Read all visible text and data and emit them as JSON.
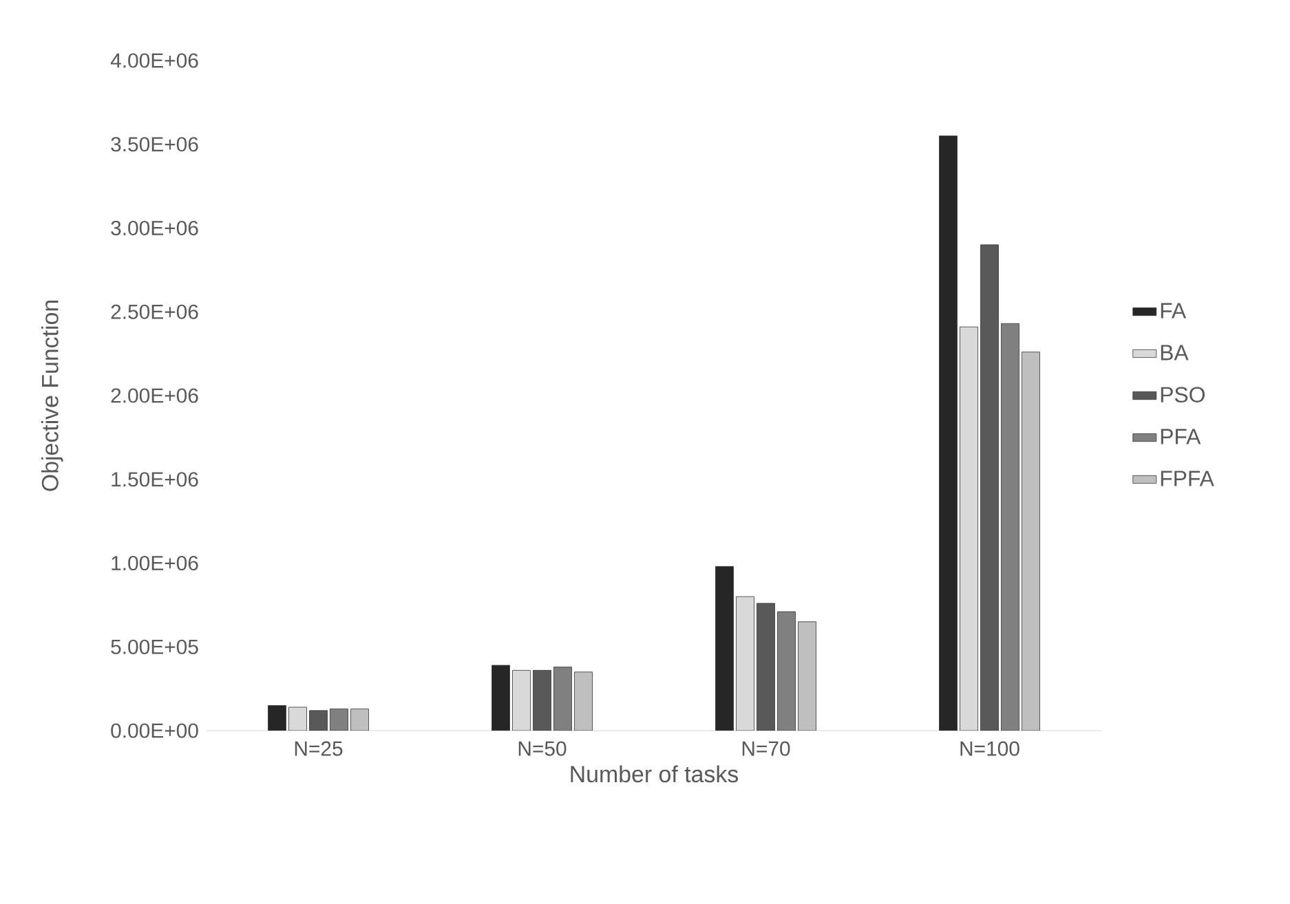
{
  "chart_data": {
    "type": "bar",
    "xlabel": "Number of tasks",
    "ylabel": "Objective Function",
    "categories": [
      "N=25",
      "N=50",
      "N=70",
      "N=100"
    ],
    "series": [
      {
        "name": "FA",
        "color": "#262626",
        "values": [
          150000,
          390000,
          980000,
          3550000
        ]
      },
      {
        "name": "BA",
        "color": "#d9d9d9",
        "values": [
          140000,
          360000,
          800000,
          2410000
        ]
      },
      {
        "name": "PSO",
        "color": "#595959",
        "values": [
          120000,
          360000,
          760000,
          2900000
        ]
      },
      {
        "name": "PFA",
        "color": "#808080",
        "values": [
          130000,
          380000,
          710000,
          2430000
        ]
      },
      {
        "name": "FPFA",
        "color": "#bfbfbf",
        "values": [
          130000,
          350000,
          650000,
          2260000
        ]
      }
    ],
    "ylim": [
      0,
      4000000
    ],
    "yticks": [
      {
        "value": 0,
        "label": "0.00E+00"
      },
      {
        "value": 500000,
        "label": "5.00E+05"
      },
      {
        "value": 1000000,
        "label": "1.00E+06"
      },
      {
        "value": 1500000,
        "label": "1.50E+06"
      },
      {
        "value": 2000000,
        "label": "2.00E+06"
      },
      {
        "value": 2500000,
        "label": "2.50E+06"
      },
      {
        "value": 3000000,
        "label": "3.00E+06"
      },
      {
        "value": 3500000,
        "label": "3.50E+06"
      },
      {
        "value": 4000000,
        "label": "4.00E+06"
      }
    ],
    "legend": "right"
  }
}
